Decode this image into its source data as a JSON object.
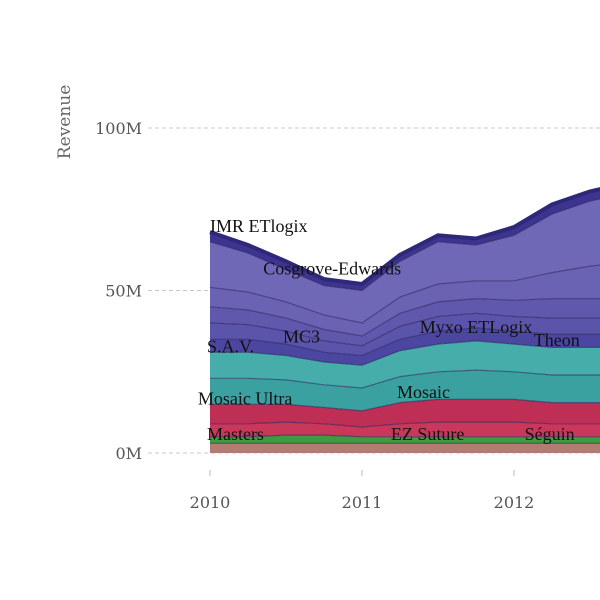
{
  "chart_data": {
    "type": "area",
    "stacked": true,
    "ylabel": "Revenue",
    "xlabel": "",
    "ylim": [
      0,
      100
    ],
    "yticks": [
      {
        "value": 0,
        "label": "0M"
      },
      {
        "value": 50,
        "label": "50M"
      },
      {
        "value": 100,
        "label": "100M"
      }
    ],
    "xticks": [
      {
        "value": 2010,
        "label": "2010"
      },
      {
        "value": 2011,
        "label": "2011"
      },
      {
        "value": 2012,
        "label": "2012"
      }
    ],
    "xlim": [
      2009.6,
      2012.6
    ],
    "x": [
      2010.0,
      2010.25,
      2010.5,
      2010.75,
      2011.0,
      2011.25,
      2011.5,
      2011.75,
      2012.0,
      2012.25,
      2012.5,
      2012.6
    ],
    "series": [
      {
        "name": "Séguin",
        "color": "#b07c73",
        "values": [
          3,
          3,
          3,
          3,
          3,
          3,
          3,
          3,
          3,
          3,
          3,
          3
        ]
      },
      {
        "name": "",
        "color": "#3f9b3f",
        "values": [
          2,
          2,
          2.5,
          2.5,
          2,
          2,
          2,
          2,
          2,
          2,
          2,
          2
        ]
      },
      {
        "name": "Masters",
        "color": "#c9385a",
        "values": [
          4,
          4,
          4,
          3.5,
          3,
          4,
          4.5,
          4.5,
          4.5,
          4,
          4,
          4
        ]
      },
      {
        "name": "EZ Suture",
        "color": "#bf2f55",
        "values": [
          6,
          6,
          5.5,
          5,
          5,
          6.5,
          7,
          7,
          7,
          6.5,
          6.5,
          6.5
        ]
      },
      {
        "name": "Mosaic Ultra",
        "color": "#3aa0a0",
        "values": [
          8,
          8,
          7.5,
          7,
          7,
          8,
          8.5,
          9,
          8.5,
          8.5,
          8.5,
          8.5
        ]
      },
      {
        "name": "Mosaic",
        "color": "#47adab",
        "values": [
          8,
          8,
          7.5,
          7,
          7,
          8,
          8.5,
          9,
          8.5,
          8.5,
          8.5,
          8.5
        ]
      },
      {
        "name": "S.A.V.",
        "color": "#4b47a0",
        "values": [
          4,
          4,
          3.5,
          3,
          3,
          3.5,
          4,
          4,
          4,
          4,
          4,
          4
        ]
      },
      {
        "name": "MC3",
        "color": "#5a54aa",
        "values": [
          5,
          4.5,
          4,
          3.5,
          3,
          4,
          4.5,
          4.5,
          4.5,
          5,
          5,
          5
        ]
      },
      {
        "name": "Myxo ETLogix",
        "color": "#5f58ad",
        "values": [
          5,
          4.5,
          4,
          3.5,
          3,
          4,
          4.5,
          4.5,
          5,
          6,
          6,
          6
        ]
      },
      {
        "name": "Theon",
        "color": "#6a63b3",
        "values": [
          6,
          5.5,
          5,
          4.5,
          4,
          5,
          5.5,
          5.5,
          6,
          8,
          10,
          10.5
        ]
      },
      {
        "name": "Cosgrove-Edwards",
        "color": "#6f68b6",
        "values": [
          14,
          12,
          10,
          9,
          10,
          11,
          13,
          11,
          14,
          18,
          20,
          20.5
        ]
      },
      {
        "name": "IMR ETlogix",
        "color": "#3d3490",
        "values": [
          3,
          2.5,
          2.5,
          2,
          2,
          2,
          2,
          2,
          2.5,
          3,
          3,
          3
        ]
      }
    ],
    "labels": [
      {
        "text": "IMR ETlogix",
        "x": 2010.0,
        "y": 68
      },
      {
        "text": "Cosgrove-Edwards",
        "x": 2010.35,
        "y": 55
      },
      {
        "text": "S.A.V.",
        "x": 2009.98,
        "y": 31
      },
      {
        "text": "MC3",
        "x": 2010.48,
        "y": 34
      },
      {
        "text": "Myxo ETLogix",
        "x": 2011.38,
        "y": 37
      },
      {
        "text": "Theon",
        "x": 2012.13,
        "y": 33
      },
      {
        "text": "Mosaic Ultra",
        "x": 2009.92,
        "y": 15
      },
      {
        "text": "Mosaic",
        "x": 2011.23,
        "y": 17
      },
      {
        "text": "Masters",
        "x": 2009.98,
        "y": 4
      },
      {
        "text": "EZ Suture",
        "x": 2011.19,
        "y": 4
      },
      {
        "text": "Séguin",
        "x": 2012.07,
        "y": 4
      }
    ],
    "grid": true,
    "legend": "none"
  }
}
